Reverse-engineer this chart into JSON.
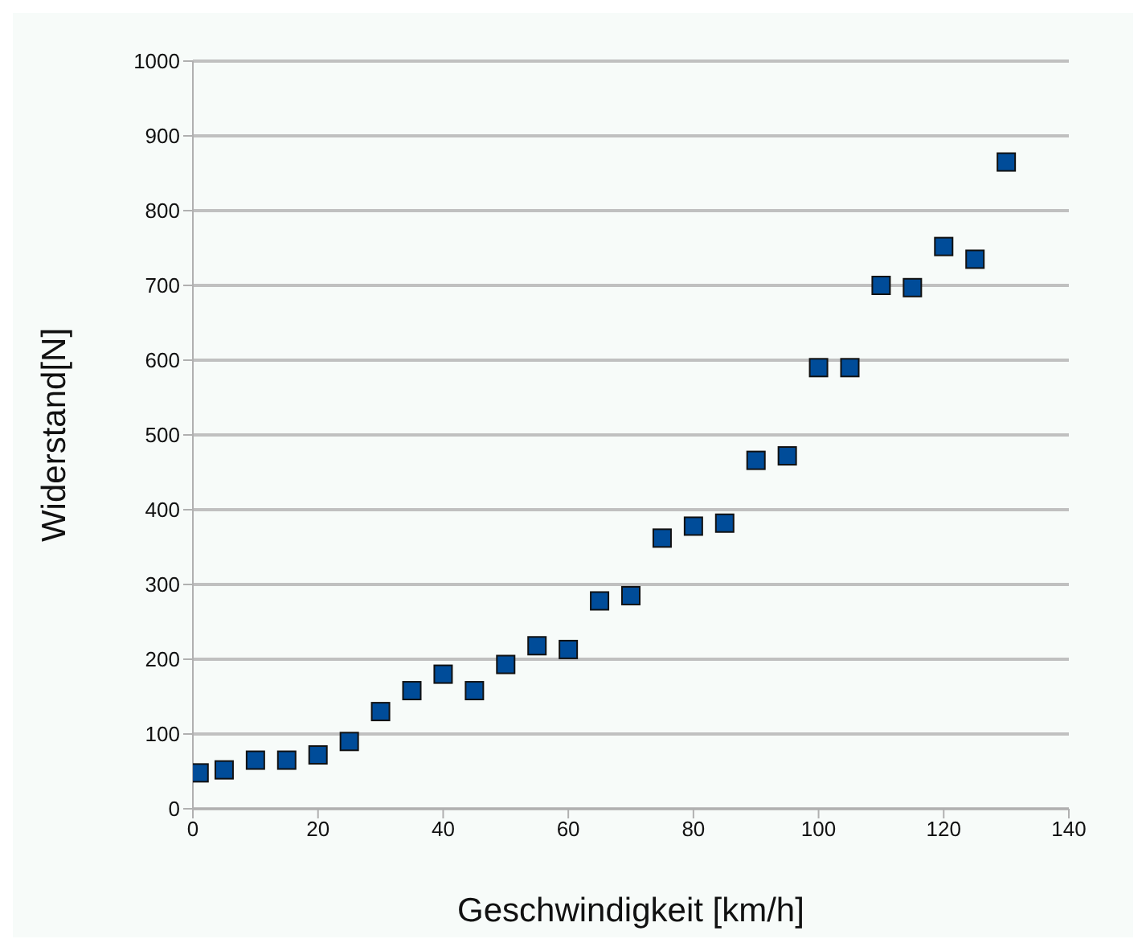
{
  "chart_data": {
    "type": "scatter",
    "xlabel": "Geschwindigkeit  [km/h]",
    "ylabel": "Widerstand[N]",
    "x": [
      1,
      5,
      10,
      15,
      20,
      25,
      30,
      35,
      40,
      45,
      50,
      55,
      60,
      65,
      70,
      75,
      80,
      85,
      90,
      95,
      100,
      105,
      110,
      115,
      120,
      125,
      130
    ],
    "series": [
      {
        "color": "#004c99",
        "values": [
          48,
          52,
          65,
          65,
          72,
          90,
          130,
          158,
          180,
          158,
          193,
          218,
          213,
          278,
          285,
          362,
          378,
          382,
          466,
          472,
          590,
          590,
          700,
          697,
          752,
          735,
          865
        ]
      }
    ],
    "xlim": [
      0,
      140
    ],
    "xticks": [
      0,
      20,
      40,
      60,
      80,
      100,
      120,
      140
    ],
    "ylim": [
      0,
      1000
    ],
    "yticks": [
      0,
      100,
      200,
      300,
      400,
      500,
      600,
      700,
      800,
      900,
      1000
    ],
    "grid": "y",
    "marker": "square",
    "legend": false
  }
}
